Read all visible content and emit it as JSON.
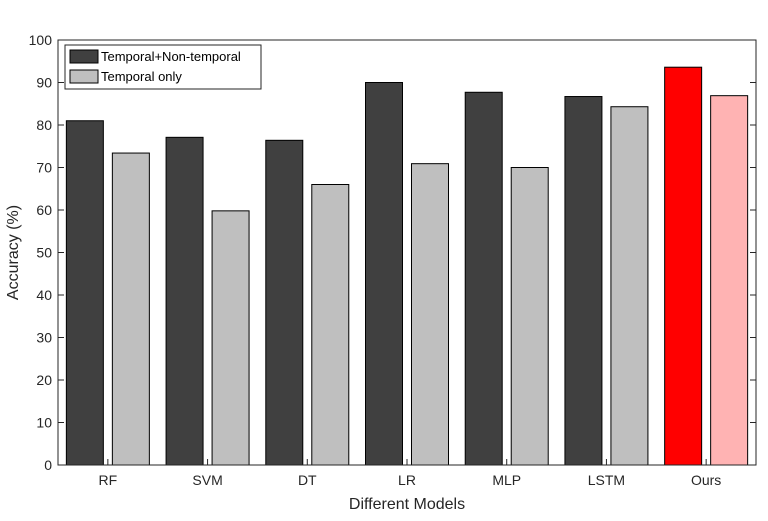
{
  "chart_data": {
    "type": "bar",
    "title": "",
    "xlabel": "Different Models",
    "ylabel": "Accuracy (%)",
    "categories": [
      "RF",
      "SVM",
      "DT",
      "LR",
      "MLP",
      "LSTM",
      "Ours"
    ],
    "series": [
      {
        "name": "Temporal+Non-temporal",
        "values": [
          81,
          77.1,
          76.4,
          90,
          87.7,
          86.7,
          93.6
        ],
        "color": "#404040",
        "highlight_color": "#ff0000"
      },
      {
        "name": "Temporal only",
        "values": [
          73.4,
          59.8,
          66,
          70.9,
          70,
          84.3,
          86.9
        ],
        "color": "#bfbfbf",
        "highlight_color": "#ffb3b3"
      }
    ],
    "highlight_category": "Ours",
    "ylim": [
      0,
      100
    ],
    "yticks": [
      0,
      10,
      20,
      30,
      40,
      50,
      60,
      70,
      80,
      90,
      100
    ],
    "grid": false,
    "legend_position": "top-left"
  }
}
